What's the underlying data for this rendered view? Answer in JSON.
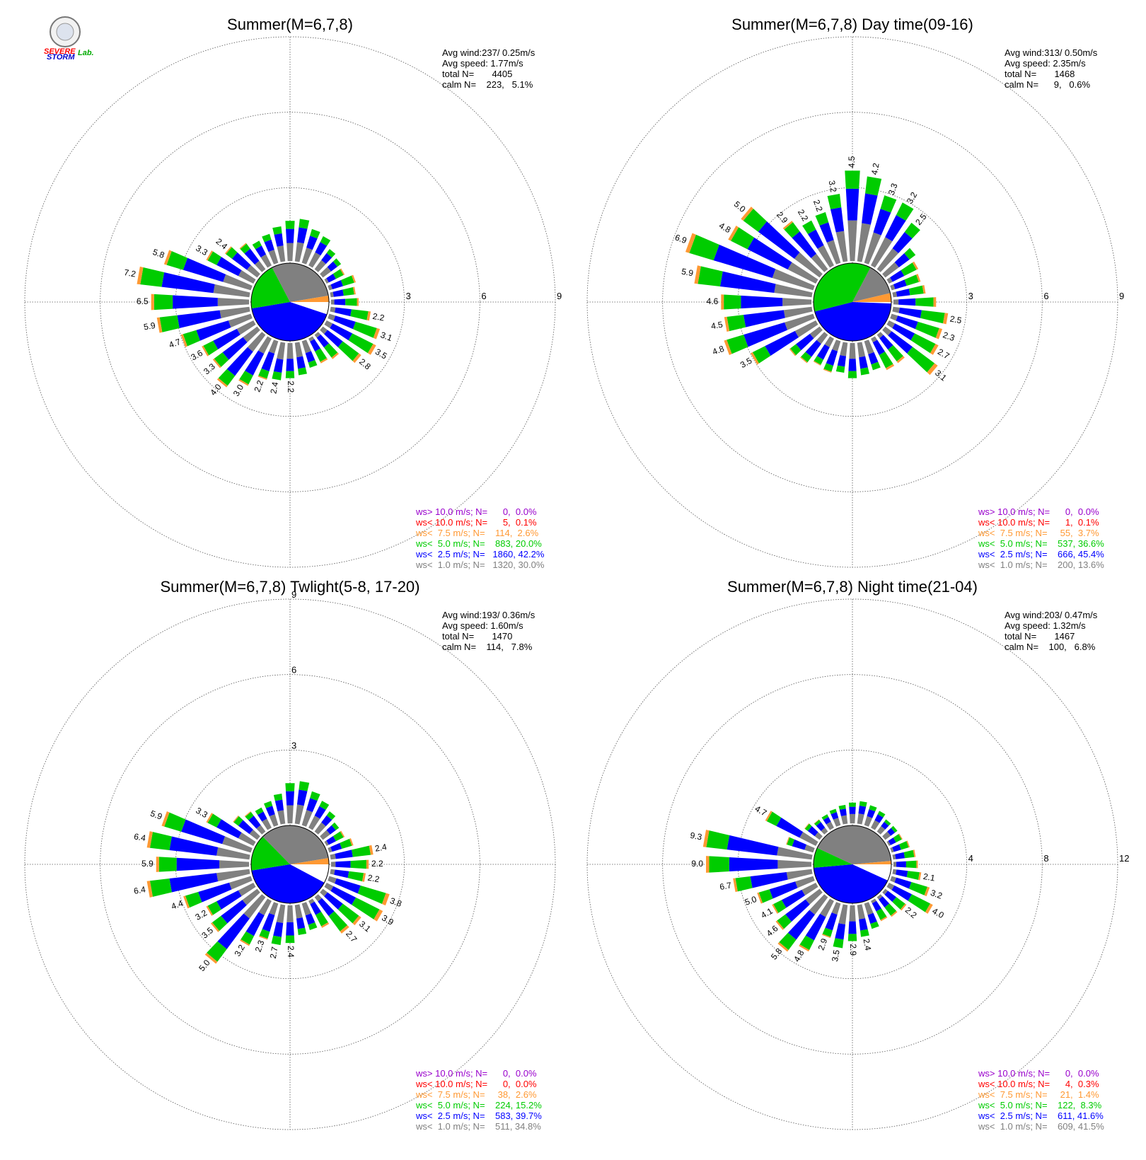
{
  "colors": {
    "ws_gt10": "#9900cc",
    "ws_lt10": "#ff0000",
    "ws_lt7_5": "#ff9933",
    "ws_lt5": "#00cc00",
    "ws_lt2_5": "#0000ff",
    "ws_lt1": "#808080",
    "grid": "#555555"
  },
  "logo": {
    "text_a": "SEVERE",
    "text_b": "STORM",
    "text_c": "Lab."
  },
  "chart_data": [
    {
      "type": "windrose",
      "title": "Summer(M=6,7,8)",
      "stats": [
        "Avg wind:237/ 0.25m/s",
        "Avg speed: 1.77m/s",
        "total N=       4405",
        "calm N=    223,   5.1%"
      ],
      "rings": [
        "3",
        "6",
        "9"
      ],
      "ring_max": 9,
      "calm_pie_percent": [
        5.1,
        42.2,
        20.0,
        30.0,
        2.6
      ],
      "legend": [
        "ws> 10.0 m/s; N=      0,  0.0%",
        "ws< 10.0 m/s; N=      5,  0.1%",
        "ws<  7.5 m/s; N=    114,  2.6%",
        "ws<  5.0 m/s; N=    883, 20.0%",
        "ws<  2.5 m/s; N=   1860, 42.2%",
        "ws<  1.0 m/s; N=   1320, 30.0%"
      ],
      "petals": [
        {
          "dir": 0,
          "total": 1.6,
          "label": ""
        },
        {
          "dir": 10,
          "total": 1.7,
          "label": ""
        },
        {
          "dir": 20,
          "total": 1.4,
          "label": ""
        },
        {
          "dir": 30,
          "total": 1.3,
          "label": ""
        },
        {
          "dir": 40,
          "total": 1.0,
          "label": ""
        },
        {
          "dir": 50,
          "total": 0.9,
          "label": ""
        },
        {
          "dir": 60,
          "total": 0.8,
          "label": ""
        },
        {
          "dir": 70,
          "total": 1.1,
          "label": ""
        },
        {
          "dir": 80,
          "total": 1.0,
          "label": ""
        },
        {
          "dir": 90,
          "total": 1.1,
          "label": ""
        },
        {
          "dir": 100,
          "total": 1.6,
          "label": "2.2"
        },
        {
          "dir": 110,
          "total": 2.1,
          "label": "3.1"
        },
        {
          "dir": 120,
          "total": 2.2,
          "label": "3.5"
        },
        {
          "dir": 130,
          "total": 1.9,
          "label": "2.8"
        },
        {
          "dir": 140,
          "total": 1.2,
          "label": ""
        },
        {
          "dir": 150,
          "total": 1.1,
          "label": ""
        },
        {
          "dir": 160,
          "total": 1.1,
          "label": ""
        },
        {
          "dir": 170,
          "total": 1.3,
          "label": ""
        },
        {
          "dir": 180,
          "total": 1.4,
          "label": "2.2"
        },
        {
          "dir": 190,
          "total": 1.5,
          "label": "2.4"
        },
        {
          "dir": 200,
          "total": 1.6,
          "label": "2.2"
        },
        {
          "dir": 210,
          "total": 2.1,
          "label": "3.0"
        },
        {
          "dir": 220,
          "total": 2.6,
          "label": "4.0"
        },
        {
          "dir": 230,
          "total": 2.2,
          "label": "3.3"
        },
        {
          "dir": 240,
          "total": 2.3,
          "label": "3.6"
        },
        {
          "dir": 250,
          "total": 2.9,
          "label": "4.7"
        },
        {
          "dir": 260,
          "total": 3.7,
          "label": "5.9"
        },
        {
          "dir": 270,
          "total": 3.9,
          "label": "6.5"
        },
        {
          "dir": 280,
          "total": 4.5,
          "label": "7.2"
        },
        {
          "dir": 290,
          "total": 3.6,
          "label": "5.8"
        },
        {
          "dir": 300,
          "total": 2.1,
          "label": "3.3"
        },
        {
          "dir": 310,
          "total": 1.6,
          "label": "2.4"
        },
        {
          "dir": 320,
          "total": 1.3,
          "label": ""
        },
        {
          "dir": 330,
          "total": 1.1,
          "label": ""
        },
        {
          "dir": 340,
          "total": 1.2,
          "label": ""
        },
        {
          "dir": 350,
          "total": 1.4,
          "label": ""
        }
      ]
    },
    {
      "type": "windrose",
      "title": "Summer(M=6,7,8) Day time(09-16)",
      "stats": [
        "Avg wind:313/ 0.50m/s",
        "Avg speed: 2.35m/s",
        "total N=       1468",
        "calm N=      9,   0.6%"
      ],
      "rings": [
        "3",
        "6",
        "9"
      ],
      "ring_max": 9,
      "calm_pie_percent": [
        0.6,
        45.4,
        36.6,
        13.6,
        3.7
      ],
      "legend": [
        "ws> 10.0 m/s; N=      0,  0.0%",
        "ws< 10.0 m/s; N=      1,  0.1%",
        "ws<  7.5 m/s; N=     55,  3.7%",
        "ws<  5.0 m/s; N=    537, 36.6%",
        "ws<  2.5 m/s; N=    666, 45.4%",
        "ws<  1.0 m/s; N=    200, 13.6%"
      ],
      "petals": [
        {
          "dir": 0,
          "total": 3.6,
          "label": "4.5"
        },
        {
          "dir": 10,
          "total": 3.4,
          "label": "4.2"
        },
        {
          "dir": 20,
          "total": 2.8,
          "label": "3.3"
        },
        {
          "dir": 30,
          "total": 2.8,
          "label": "3.2"
        },
        {
          "dir": 40,
          "total": 2.3,
          "label": "2.5"
        },
        {
          "dir": 50,
          "total": 1.5,
          "label": ""
        },
        {
          "dir": 60,
          "total": 1.3,
          "label": ""
        },
        {
          "dir": 70,
          "total": 1.2,
          "label": ""
        },
        {
          "dir": 80,
          "total": 1.3,
          "label": ""
        },
        {
          "dir": 90,
          "total": 1.7,
          "label": ""
        },
        {
          "dir": 100,
          "total": 2.2,
          "label": "2.5"
        },
        {
          "dir": 110,
          "total": 2.1,
          "label": "2.3"
        },
        {
          "dir": 120,
          "total": 2.2,
          "label": "2.7"
        },
        {
          "dir": 130,
          "total": 2.6,
          "label": "3.1"
        },
        {
          "dir": 140,
          "total": 1.4,
          "label": ""
        },
        {
          "dir": 150,
          "total": 1.4,
          "label": ""
        },
        {
          "dir": 160,
          "total": 1.2,
          "label": ""
        },
        {
          "dir": 170,
          "total": 1.3,
          "label": ""
        },
        {
          "dir": 180,
          "total": 1.4,
          "label": ""
        },
        {
          "dir": 190,
          "total": 1.2,
          "label": ""
        },
        {
          "dir": 200,
          "total": 1.3,
          "label": ""
        },
        {
          "dir": 210,
          "total": 1.2,
          "label": ""
        },
        {
          "dir": 220,
          "total": 1.4,
          "label": ""
        },
        {
          "dir": 230,
          "total": 1.5,
          "label": ""
        },
        {
          "dir": 240,
          "total": 2.9,
          "label": "3.5"
        },
        {
          "dir": 250,
          "total": 3.7,
          "label": "4.8"
        },
        {
          "dir": 260,
          "total": 3.5,
          "label": "4.5"
        },
        {
          "dir": 270,
          "total": 3.6,
          "label": "4.6"
        },
        {
          "dir": 280,
          "total": 4.7,
          "label": "5.9"
        },
        {
          "dir": 290,
          "total": 5.3,
          "label": "6.9"
        },
        {
          "dir": 300,
          "total": 3.9,
          "label": "4.8"
        },
        {
          "dir": 310,
          "total": 3.9,
          "label": "5.0"
        },
        {
          "dir": 320,
          "total": 2.4,
          "label": "2.9"
        },
        {
          "dir": 330,
          "total": 2.0,
          "label": "2.2"
        },
        {
          "dir": 340,
          "total": 2.1,
          "label": "2.2"
        },
        {
          "dir": 350,
          "total": 2.7,
          "label": "3.2"
        }
      ]
    },
    {
      "type": "windrose",
      "title": "Summer(M=6,7,8) Twlight(5-8, 17-20)",
      "stats": [
        "Avg wind:193/ 0.36m/s",
        "Avg speed: 1.60m/s",
        "total N=       1470",
        "calm N=    114,   7.8%"
      ],
      "rings": [
        "3",
        "6",
        "9"
      ],
      "ring_max": 9,
      "calm_pie_percent": [
        7.8,
        39.7,
        15.2,
        34.8,
        2.6
      ],
      "legend": [
        "ws> 10.0 m/s; N=      0,  0.0%",
        "ws< 10.0 m/s; N=      0,  0.0%",
        "ws<  7.5 m/s; N=     38,  2.6%",
        "ws<  5.0 m/s; N=    224, 15.2%",
        "ws<  2.5 m/s; N=    583, 39.7%",
        "ws<  1.0 m/s; N=    511, 34.8%"
      ],
      "petals": [
        {
          "dir": 0,
          "total": 1.6,
          "label": ""
        },
        {
          "dir": 10,
          "total": 1.7,
          "label": ""
        },
        {
          "dir": 20,
          "total": 1.4,
          "label": ""
        },
        {
          "dir": 30,
          "total": 1.2,
          "label": ""
        },
        {
          "dir": 40,
          "total": 1.0,
          "label": ""
        },
        {
          "dir": 50,
          "total": 0.8,
          "label": ""
        },
        {
          "dir": 60,
          "total": 0.8,
          "label": ""
        },
        {
          "dir": 70,
          "total": 1.0,
          "label": ""
        },
        {
          "dir": 80,
          "total": 1.7,
          "label": "2.4"
        },
        {
          "dir": 90,
          "total": 1.5,
          "label": "2.2"
        },
        {
          "dir": 100,
          "total": 1.4,
          "label": "2.2"
        },
        {
          "dir": 110,
          "total": 2.5,
          "label": "3.8"
        },
        {
          "dir": 120,
          "total": 2.5,
          "label": "3.9"
        },
        {
          "dir": 130,
          "total": 1.9,
          "label": "3.1"
        },
        {
          "dir": 140,
          "total": 1.8,
          "label": "2.7"
        },
        {
          "dir": 150,
          "total": 1.2,
          "label": ""
        },
        {
          "dir": 160,
          "total": 1.1,
          "label": ""
        },
        {
          "dir": 170,
          "total": 1.2,
          "label": ""
        },
        {
          "dir": 180,
          "total": 1.5,
          "label": "2.4"
        },
        {
          "dir": 190,
          "total": 1.6,
          "label": "2.7"
        },
        {
          "dir": 200,
          "total": 1.5,
          "label": "2.3"
        },
        {
          "dir": 210,
          "total": 2.0,
          "label": "3.2"
        },
        {
          "dir": 220,
          "total": 3.3,
          "label": "5.0"
        },
        {
          "dir": 230,
          "total": 2.3,
          "label": "3.5"
        },
        {
          "dir": 240,
          "total": 2.1,
          "label": "3.2"
        },
        {
          "dir": 250,
          "total": 2.8,
          "label": "4.4"
        },
        {
          "dir": 260,
          "total": 4.1,
          "label": "6.4"
        },
        {
          "dir": 270,
          "total": 3.7,
          "label": "5.9"
        },
        {
          "dir": 280,
          "total": 4.1,
          "label": "6.4"
        },
        {
          "dir": 290,
          "total": 3.7,
          "label": "5.9"
        },
        {
          "dir": 300,
          "total": 2.1,
          "label": "3.3"
        },
        {
          "dir": 310,
          "total": 1.2,
          "label": ""
        },
        {
          "dir": 320,
          "total": 1.0,
          "label": ""
        },
        {
          "dir": 330,
          "total": 0.9,
          "label": ""
        },
        {
          "dir": 340,
          "total": 1.0,
          "label": ""
        },
        {
          "dir": 350,
          "total": 1.2,
          "label": ""
        }
      ]
    },
    {
      "type": "windrose",
      "title": "Summer(M=6,7,8) Night time(21-04)",
      "stats": [
        "Avg wind:203/ 0.47m/s",
        "Avg speed: 1.32m/s",
        "total N=       1467",
        "calm N=    100,   6.8%"
      ],
      "rings": [
        "4",
        "8",
        "12"
      ],
      "ring_max": 12,
      "calm_pie_percent": [
        6.8,
        41.6,
        8.3,
        41.5,
        1.4
      ],
      "legend": [
        "ws> 10.0 m/s; N=      0,  0.0%",
        "ws< 10.0 m/s; N=      4,  0.3%",
        "ws<  7.5 m/s; N=     21,  1.4%",
        "ws<  5.0 m/s; N=    122,  8.3%",
        "ws<  2.5 m/s; N=    611, 41.6%",
        "ws<  1.0 m/s; N=    609, 41.5%"
      ],
      "petals": [
        {
          "dir": 0,
          "total": 1.1,
          "label": ""
        },
        {
          "dir": 10,
          "total": 1.2,
          "label": ""
        },
        {
          "dir": 20,
          "total": 1.1,
          "label": ""
        },
        {
          "dir": 30,
          "total": 1.0,
          "label": ""
        },
        {
          "dir": 40,
          "total": 0.8,
          "label": ""
        },
        {
          "dir": 50,
          "total": 0.8,
          "label": ""
        },
        {
          "dir": 60,
          "total": 0.8,
          "label": ""
        },
        {
          "dir": 70,
          "total": 1.0,
          "label": ""
        },
        {
          "dir": 80,
          "total": 1.2,
          "label": ""
        },
        {
          "dir": 90,
          "total": 1.3,
          "label": ""
        },
        {
          "dir": 100,
          "total": 1.5,
          "label": "2.1"
        },
        {
          "dir": 110,
          "total": 2.1,
          "label": "3.2"
        },
        {
          "dir": 120,
          "total": 2.6,
          "label": "4.0"
        },
        {
          "dir": 130,
          "total": 1.4,
          "label": "2.2"
        },
        {
          "dir": 140,
          "total": 1.3,
          "label": ""
        },
        {
          "dir": 150,
          "total": 1.2,
          "label": ""
        },
        {
          "dir": 160,
          "total": 1.4,
          "label": ""
        },
        {
          "dir": 170,
          "total": 1.7,
          "label": "2.4"
        },
        {
          "dir": 180,
          "total": 1.9,
          "label": "2.9"
        },
        {
          "dir": 190,
          "total": 2.3,
          "label": "3.5"
        },
        {
          "dir": 200,
          "total": 1.9,
          "label": "2.9"
        },
        {
          "dir": 210,
          "total": 3.0,
          "label": "4.8"
        },
        {
          "dir": 220,
          "total": 3.6,
          "label": "5.8"
        },
        {
          "dir": 230,
          "total": 2.9,
          "label": "4.6"
        },
        {
          "dir": 240,
          "total": 2.6,
          "label": "4.1"
        },
        {
          "dir": 250,
          "total": 3.1,
          "label": "5.0"
        },
        {
          "dir": 260,
          "total": 4.2,
          "label": "6.7"
        },
        {
          "dir": 270,
          "total": 5.6,
          "label": "9.0"
        },
        {
          "dir": 280,
          "total": 5.8,
          "label": "9.3"
        },
        {
          "dir": 290,
          "total": 1.5,
          "label": ""
        },
        {
          "dir": 300,
          "total": 3.0,
          "label": "4.7"
        },
        {
          "dir": 310,
          "total": 1.0,
          "label": ""
        },
        {
          "dir": 320,
          "total": 0.8,
          "label": ""
        },
        {
          "dir": 330,
          "total": 0.8,
          "label": ""
        },
        {
          "dir": 340,
          "total": 0.9,
          "label": ""
        },
        {
          "dir": 350,
          "total": 1.0,
          "label": ""
        }
      ]
    }
  ]
}
